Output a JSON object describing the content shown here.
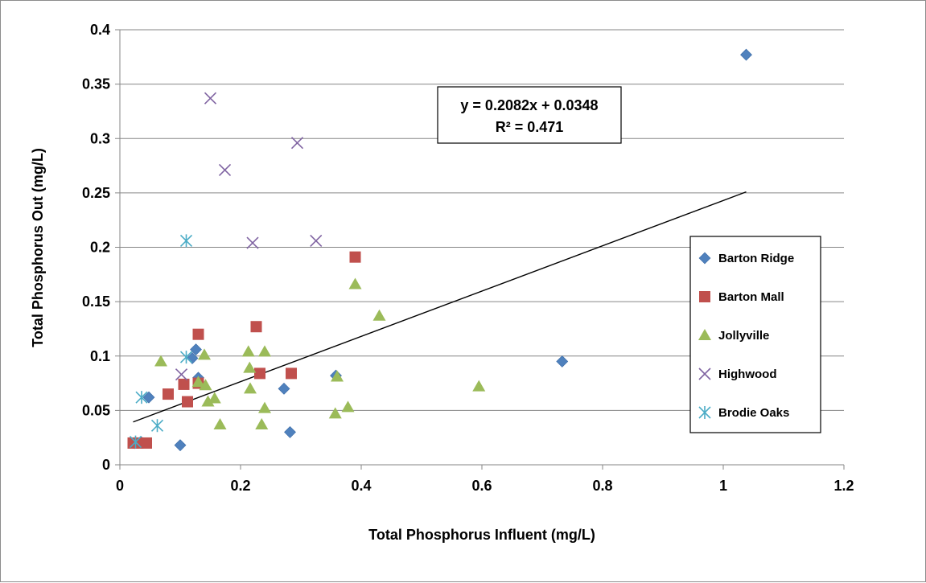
{
  "chart_data": {
    "type": "scatter",
    "title": "",
    "xlabel": "Total Phosphorus Influent (mg/L)",
    "ylabel": "Total Phosphorus Out (mg/L)",
    "xlim": [
      0,
      1.2
    ],
    "ylim": [
      0,
      0.4
    ],
    "xticks": [
      "0",
      "0.2",
      "0.4",
      "0.6",
      "0.8",
      "1",
      "1.2"
    ],
    "yticks": [
      "0",
      "0.05",
      "0.1",
      "0.15",
      "0.2",
      "0.25",
      "0.3",
      "0.35",
      "0.4"
    ],
    "grid": "horizontal",
    "legend_position": "right",
    "trendline": {
      "slope": 0.2082,
      "intercept": 0.0348,
      "x_range": [
        0.022,
        1.038
      ],
      "equation": "y = 0.2082x + 0.0348",
      "r_squared": "R² = 0.471"
    },
    "series": [
      {
        "name": "Barton Ridge",
        "marker": "diamond",
        "color": "#4F81BD",
        "points": [
          [
            1.038,
            0.377
          ],
          [
            0.733,
            0.095
          ],
          [
            0.358,
            0.082
          ],
          [
            0.272,
            0.07
          ],
          [
            0.282,
            0.03
          ],
          [
            0.126,
            0.106
          ],
          [
            0.12,
            0.098
          ],
          [
            0.13,
            0.08
          ],
          [
            0.048,
            0.062
          ],
          [
            0.1,
            0.018
          ],
          [
            0.025,
            0.02
          ],
          [
            0.035,
            0.021
          ]
        ]
      },
      {
        "name": "Barton Mall",
        "marker": "square",
        "color": "#C0504D",
        "points": [
          [
            0.39,
            0.191
          ],
          [
            0.226,
            0.127
          ],
          [
            0.13,
            0.12
          ],
          [
            0.284,
            0.084
          ],
          [
            0.232,
            0.084
          ],
          [
            0.08,
            0.065
          ],
          [
            0.106,
            0.074
          ],
          [
            0.13,
            0.075
          ],
          [
            0.112,
            0.058
          ],
          [
            0.022,
            0.02
          ],
          [
            0.03,
            0.02
          ],
          [
            0.044,
            0.02
          ]
        ]
      },
      {
        "name": "Jollyville",
        "marker": "triangle",
        "color": "#9BBB59",
        "points": [
          [
            0.39,
            0.166
          ],
          [
            0.43,
            0.137
          ],
          [
            0.068,
            0.095
          ],
          [
            0.14,
            0.101
          ],
          [
            0.213,
            0.104
          ],
          [
            0.24,
            0.104
          ],
          [
            0.215,
            0.089
          ],
          [
            0.13,
            0.076
          ],
          [
            0.142,
            0.073
          ],
          [
            0.216,
            0.07
          ],
          [
            0.595,
            0.072
          ],
          [
            0.36,
            0.081
          ],
          [
            0.157,
            0.061
          ],
          [
            0.146,
            0.058
          ],
          [
            0.24,
            0.052
          ],
          [
            0.378,
            0.053
          ],
          [
            0.357,
            0.047
          ],
          [
            0.166,
            0.037
          ],
          [
            0.235,
            0.037
          ]
        ]
      },
      {
        "name": "Highwood",
        "marker": "x",
        "color": "#8064A2",
        "points": [
          [
            0.15,
            0.337
          ],
          [
            0.294,
            0.296
          ],
          [
            0.174,
            0.271
          ],
          [
            0.22,
            0.204
          ],
          [
            0.325,
            0.206
          ],
          [
            0.102,
            0.083
          ]
        ]
      },
      {
        "name": "Brodie Oaks",
        "marker": "asterisk",
        "color": "#4BACC6",
        "points": [
          [
            0.11,
            0.206
          ],
          [
            0.11,
            0.099
          ],
          [
            0.036,
            0.062
          ],
          [
            0.062,
            0.036
          ],
          [
            0.026,
            0.021
          ]
        ]
      }
    ]
  }
}
